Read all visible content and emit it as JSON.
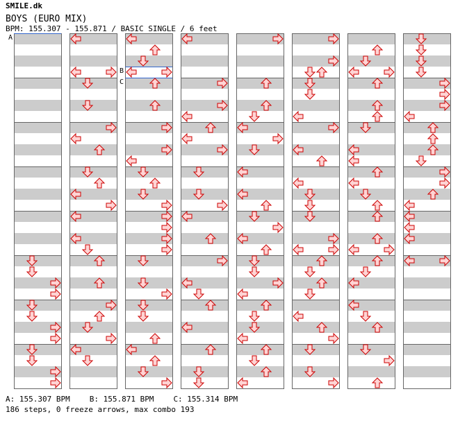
{
  "header": {
    "site": "SMILE.dk",
    "song": "BOYS (EURO MIX)",
    "info": "BPM: 155.307 - 155.871 / BASIC SINGLE / 6 feet"
  },
  "colors": {
    "stripe": "#cccccc",
    "arrow_fill": "#ffd4d4",
    "arrow_stroke": "#cc0000",
    "bpm_marker": "#3366cc",
    "border": "#666666"
  },
  "bpm_markers": [
    {
      "label": "A",
      "column": 0,
      "measure": 0
    },
    {
      "label": "B",
      "column": 2,
      "measure": 27
    },
    {
      "label": "C",
      "column": 2,
      "measure": 28
    }
  ],
  "arrows_note": "Each arrow: [column, row(0-31 within column, 16th-beat step rows of 16px), direction L/D/U/R]",
  "arrows": [
    [
      0,
      20,
      "D"
    ],
    [
      0,
      21,
      "D"
    ],
    [
      0,
      22,
      "R"
    ],
    [
      0,
      23,
      "R"
    ],
    [
      0,
      24,
      "D"
    ],
    [
      0,
      25,
      "D"
    ],
    [
      0,
      26,
      "R"
    ],
    [
      0,
      27,
      "R"
    ],
    [
      0,
      28,
      "D"
    ],
    [
      0,
      29,
      "D"
    ],
    [
      0,
      30,
      "R"
    ],
    [
      0,
      31,
      "R"
    ],
    [
      1,
      0,
      "L"
    ],
    [
      1,
      3,
      "L"
    ],
    [
      1,
      3,
      "R"
    ],
    [
      1,
      4,
      "D"
    ],
    [
      1,
      6,
      "D"
    ],
    [
      1,
      8,
      "R"
    ],
    [
      1,
      9,
      "L"
    ],
    [
      1,
      10,
      "U"
    ],
    [
      1,
      12,
      "D"
    ],
    [
      1,
      13,
      "U"
    ],
    [
      1,
      14,
      "L"
    ],
    [
      1,
      15,
      "R"
    ],
    [
      1,
      16,
      "L"
    ],
    [
      1,
      18,
      "L"
    ],
    [
      1,
      19,
      "D"
    ],
    [
      1,
      20,
      "U"
    ],
    [
      1,
      22,
      "U"
    ],
    [
      1,
      24,
      "R"
    ],
    [
      1,
      25,
      "U"
    ],
    [
      1,
      26,
      "D"
    ],
    [
      1,
      27,
      "R"
    ],
    [
      1,
      28,
      "L"
    ],
    [
      1,
      29,
      "D"
    ],
    [
      2,
      0,
      "L"
    ],
    [
      2,
      1,
      "U"
    ],
    [
      2,
      2,
      "D"
    ],
    [
      2,
      3,
      "L"
    ],
    [
      2,
      3,
      "R"
    ],
    [
      2,
      4,
      "U"
    ],
    [
      2,
      6,
      "U"
    ],
    [
      2,
      8,
      "R"
    ],
    [
      2,
      10,
      "R"
    ],
    [
      2,
      11,
      "L"
    ],
    [
      2,
      12,
      "D"
    ],
    [
      2,
      13,
      "U"
    ],
    [
      2,
      14,
      "D"
    ],
    [
      2,
      15,
      "R"
    ],
    [
      2,
      16,
      "R"
    ],
    [
      2,
      17,
      "R"
    ],
    [
      2,
      18,
      "R"
    ],
    [
      2,
      19,
      "R"
    ],
    [
      2,
      20,
      "D"
    ],
    [
      2,
      22,
      "D"
    ],
    [
      2,
      23,
      "R"
    ],
    [
      2,
      24,
      "D"
    ],
    [
      2,
      25,
      "D"
    ],
    [
      2,
      27,
      "U"
    ],
    [
      2,
      28,
      "L"
    ],
    [
      2,
      29,
      "U"
    ],
    [
      2,
      30,
      "D"
    ],
    [
      2,
      31,
      "R"
    ],
    [
      3,
      0,
      "L"
    ],
    [
      3,
      4,
      "R"
    ],
    [
      3,
      6,
      "R"
    ],
    [
      3,
      7,
      "L"
    ],
    [
      3,
      8,
      "U"
    ],
    [
      3,
      9,
      "L"
    ],
    [
      3,
      10,
      "R"
    ],
    [
      3,
      12,
      "D"
    ],
    [
      3,
      14,
      "D"
    ],
    [
      3,
      15,
      "R"
    ],
    [
      3,
      16,
      "L"
    ],
    [
      3,
      18,
      "U"
    ],
    [
      3,
      20,
      "R"
    ],
    [
      3,
      22,
      "L"
    ],
    [
      3,
      23,
      "D"
    ],
    [
      3,
      24,
      "U"
    ],
    [
      3,
      26,
      "L"
    ],
    [
      3,
      28,
      "U"
    ],
    [
      3,
      30,
      "D"
    ],
    [
      3,
      31,
      "D"
    ],
    [
      4,
      0,
      "R"
    ],
    [
      4,
      4,
      "U"
    ],
    [
      4,
      6,
      "U"
    ],
    [
      4,
      7,
      "D"
    ],
    [
      4,
      8,
      "L"
    ],
    [
      4,
      9,
      "R"
    ],
    [
      4,
      10,
      "D"
    ],
    [
      4,
      12,
      "L"
    ],
    [
      4,
      14,
      "L"
    ],
    [
      4,
      15,
      "U"
    ],
    [
      4,
      16,
      "D"
    ],
    [
      4,
      17,
      "R"
    ],
    [
      4,
      18,
      "L"
    ],
    [
      4,
      19,
      "U"
    ],
    [
      4,
      20,
      "D"
    ],
    [
      4,
      21,
      "D"
    ],
    [
      4,
      22,
      "R"
    ],
    [
      4,
      23,
      "L"
    ],
    [
      4,
      24,
      "U"
    ],
    [
      4,
      25,
      "D"
    ],
    [
      4,
      26,
      "D"
    ],
    [
      4,
      27,
      "L"
    ],
    [
      4,
      28,
      "U"
    ],
    [
      4,
      29,
      "D"
    ],
    [
      4,
      30,
      "U"
    ],
    [
      4,
      31,
      "L"
    ],
    [
      5,
      0,
      "R"
    ],
    [
      5,
      2,
      "R"
    ],
    [
      5,
      3,
      "D"
    ],
    [
      5,
      3,
      "U"
    ],
    [
      5,
      4,
      "D"
    ],
    [
      5,
      5,
      "D"
    ],
    [
      5,
      7,
      "L"
    ],
    [
      5,
      8,
      "R"
    ],
    [
      5,
      10,
      "L"
    ],
    [
      5,
      11,
      "U"
    ],
    [
      5,
      13,
      "L"
    ],
    [
      5,
      14,
      "D"
    ],
    [
      5,
      15,
      "D"
    ],
    [
      5,
      16,
      "D"
    ],
    [
      5,
      18,
      "R"
    ],
    [
      5,
      19,
      "L"
    ],
    [
      5,
      19,
      "R"
    ],
    [
      5,
      20,
      "U"
    ],
    [
      5,
      21,
      "D"
    ],
    [
      5,
      22,
      "U"
    ],
    [
      5,
      23,
      "D"
    ],
    [
      5,
      25,
      "L"
    ],
    [
      5,
      26,
      "U"
    ],
    [
      5,
      27,
      "R"
    ],
    [
      5,
      28,
      "D"
    ],
    [
      5,
      30,
      "D"
    ],
    [
      5,
      31,
      "R"
    ],
    [
      6,
      1,
      "U"
    ],
    [
      6,
      2,
      "D"
    ],
    [
      6,
      3,
      "L"
    ],
    [
      6,
      3,
      "R"
    ],
    [
      6,
      4,
      "U"
    ],
    [
      6,
      6,
      "U"
    ],
    [
      6,
      7,
      "U"
    ],
    [
      6,
      8,
      "D"
    ],
    [
      6,
      10,
      "L"
    ],
    [
      6,
      11,
      "L"
    ],
    [
      6,
      12,
      "U"
    ],
    [
      6,
      13,
      "L"
    ],
    [
      6,
      14,
      "D"
    ],
    [
      6,
      15,
      "U"
    ],
    [
      6,
      16,
      "U"
    ],
    [
      6,
      18,
      "U"
    ],
    [
      6,
      19,
      "L"
    ],
    [
      6,
      19,
      "R"
    ],
    [
      6,
      20,
      "U"
    ],
    [
      6,
      21,
      "D"
    ],
    [
      6,
      22,
      "L"
    ],
    [
      6,
      24,
      "L"
    ],
    [
      6,
      25,
      "D"
    ],
    [
      6,
      26,
      "U"
    ],
    [
      6,
      28,
      "D"
    ],
    [
      6,
      29,
      "R"
    ],
    [
      6,
      31,
      "U"
    ],
    [
      7,
      0,
      "D"
    ],
    [
      7,
      1,
      "D"
    ],
    [
      7,
      2,
      "D"
    ],
    [
      7,
      3,
      "D"
    ],
    [
      7,
      4,
      "R"
    ],
    [
      7,
      5,
      "R"
    ],
    [
      7,
      6,
      "R"
    ],
    [
      7,
      7,
      "L"
    ],
    [
      7,
      8,
      "U"
    ],
    [
      7,
      9,
      "U"
    ],
    [
      7,
      10,
      "U"
    ],
    [
      7,
      11,
      "D"
    ],
    [
      7,
      12,
      "R"
    ],
    [
      7,
      13,
      "R"
    ],
    [
      7,
      14,
      "U"
    ],
    [
      7,
      15,
      "L"
    ],
    [
      7,
      16,
      "L"
    ],
    [
      7,
      17,
      "L"
    ],
    [
      7,
      18,
      "L"
    ],
    [
      7,
      20,
      "L"
    ],
    [
      7,
      20,
      "R"
    ]
  ],
  "legend": {
    "a": "A: 155.307 BPM",
    "b": "B: 155.871 BPM",
    "c": "C: 155.314 BPM"
  },
  "stats": "186 steps, 0 freeze arrows, max combo 193"
}
